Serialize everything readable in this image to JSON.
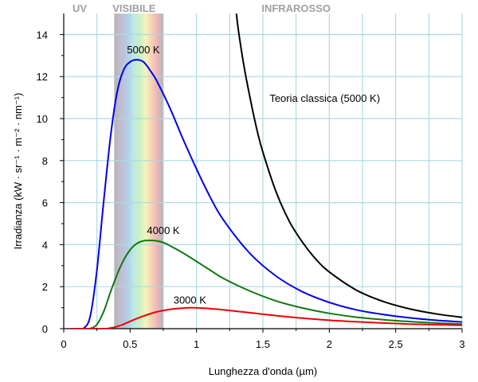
{
  "chart_data": {
    "type": "line",
    "xlabel": "Lunghezza d'onda (µm)",
    "ylabel": "Irradianza (kW · sr⁻¹ · m⁻² · nm⁻¹)",
    "xlim": [
      0,
      3
    ],
    "ylim": [
      0,
      15
    ],
    "x_ticks": [
      0,
      0.5,
      1,
      1.5,
      2,
      2.5,
      3
    ],
    "x_tick_labels": [
      "0",
      "0.5",
      "1",
      "1.5",
      "2",
      "2.5",
      "3"
    ],
    "y_ticks": [
      0,
      2,
      4,
      6,
      8,
      10,
      12,
      14
    ],
    "y_tick_labels": [
      "0",
      "2",
      "4",
      "6",
      "8",
      "10",
      "12",
      "14"
    ],
    "grid": true,
    "regions": [
      {
        "label": "UV",
        "x_range": [
          0,
          0.38
        ]
      },
      {
        "label": "VISIBILE",
        "x_range": [
          0.38,
          0.75
        ]
      },
      {
        "label": "INFRAROSSO",
        "x_range": [
          0.75,
          3
        ]
      }
    ],
    "series": [
      {
        "name": "5000 K",
        "color": "#0000ee",
        "points": [
          [
            0.05,
            0
          ],
          [
            0.1,
            0
          ],
          [
            0.15,
            0.02
          ],
          [
            0.2,
            0.6
          ],
          [
            0.25,
            2.8
          ],
          [
            0.3,
            6.0
          ],
          [
            0.35,
            9.0
          ],
          [
            0.4,
            11.2
          ],
          [
            0.45,
            12.3
          ],
          [
            0.5,
            12.7
          ],
          [
            0.55,
            12.8
          ],
          [
            0.6,
            12.7
          ],
          [
            0.65,
            12.3
          ],
          [
            0.7,
            11.8
          ],
          [
            0.8,
            10.5
          ],
          [
            0.9,
            9.0
          ],
          [
            1.0,
            7.6
          ],
          [
            1.1,
            6.3
          ],
          [
            1.2,
            5.2
          ],
          [
            1.4,
            3.6
          ],
          [
            1.6,
            2.5
          ],
          [
            1.8,
            1.75
          ],
          [
            2.0,
            1.25
          ],
          [
            2.2,
            0.9
          ],
          [
            2.4,
            0.68
          ],
          [
            2.6,
            0.52
          ],
          [
            2.8,
            0.4
          ],
          [
            3.0,
            0.32
          ]
        ]
      },
      {
        "name": "4000 K",
        "color": "#117711",
        "points": [
          [
            0.05,
            0
          ],
          [
            0.15,
            0
          ],
          [
            0.2,
            0.01
          ],
          [
            0.25,
            0.2
          ],
          [
            0.3,
            0.8
          ],
          [
            0.35,
            1.7
          ],
          [
            0.4,
            2.55
          ],
          [
            0.45,
            3.25
          ],
          [
            0.5,
            3.75
          ],
          [
            0.55,
            4.05
          ],
          [
            0.6,
            4.18
          ],
          [
            0.65,
            4.2
          ],
          [
            0.7,
            4.18
          ],
          [
            0.75,
            4.1
          ],
          [
            0.8,
            3.95
          ],
          [
            0.9,
            3.6
          ],
          [
            1.0,
            3.2
          ],
          [
            1.1,
            2.8
          ],
          [
            1.2,
            2.4
          ],
          [
            1.4,
            1.8
          ],
          [
            1.6,
            1.32
          ],
          [
            1.8,
            0.98
          ],
          [
            2.0,
            0.73
          ],
          [
            2.2,
            0.55
          ],
          [
            2.4,
            0.43
          ],
          [
            2.6,
            0.34
          ],
          [
            2.8,
            0.27
          ],
          [
            3.0,
            0.22
          ]
        ]
      },
      {
        "name": "3000 K",
        "color": "#ee0000",
        "points": [
          [
            0.05,
            0
          ],
          [
            0.3,
            0
          ],
          [
            0.35,
            0.03
          ],
          [
            0.4,
            0.1
          ],
          [
            0.45,
            0.21
          ],
          [
            0.5,
            0.35
          ],
          [
            0.6,
            0.6
          ],
          [
            0.7,
            0.8
          ],
          [
            0.8,
            0.92
          ],
          [
            0.9,
            0.98
          ],
          [
            0.97,
            1.0
          ],
          [
            1.0,
            0.99
          ],
          [
            1.1,
            0.96
          ],
          [
            1.2,
            0.9
          ],
          [
            1.4,
            0.76
          ],
          [
            1.6,
            0.62
          ],
          [
            1.8,
            0.5
          ],
          [
            2.0,
            0.4
          ],
          [
            2.2,
            0.33
          ],
          [
            2.4,
            0.27
          ],
          [
            2.6,
            0.22
          ],
          [
            2.8,
            0.19
          ],
          [
            3.0,
            0.16
          ]
        ]
      },
      {
        "name": "Teoria classica (5000 K)",
        "color": "#000000",
        "points": [
          [
            1.3,
            15
          ],
          [
            1.32,
            14.0
          ],
          [
            1.36,
            12.4
          ],
          [
            1.4,
            11.1
          ],
          [
            1.45,
            9.6
          ],
          [
            1.5,
            8.4
          ],
          [
            1.6,
            6.5
          ],
          [
            1.7,
            5.1
          ],
          [
            1.8,
            4.1
          ],
          [
            1.9,
            3.3
          ],
          [
            2.0,
            2.7
          ],
          [
            2.2,
            1.85
          ],
          [
            2.4,
            1.31
          ],
          [
            2.6,
            0.95
          ],
          [
            2.8,
            0.71
          ],
          [
            3.0,
            0.54
          ]
        ]
      }
    ],
    "annotations": [
      {
        "text": "5000 K",
        "x": 0.6,
        "y": 13.1
      },
      {
        "text": "4000 K",
        "x": 0.75,
        "y": 4.5
      },
      {
        "text": "3000 K",
        "x": 0.95,
        "y": 1.2
      },
      {
        "text": "Teoria classica (5000 K)",
        "x": 1.55,
        "y": 10.8
      }
    ]
  }
}
